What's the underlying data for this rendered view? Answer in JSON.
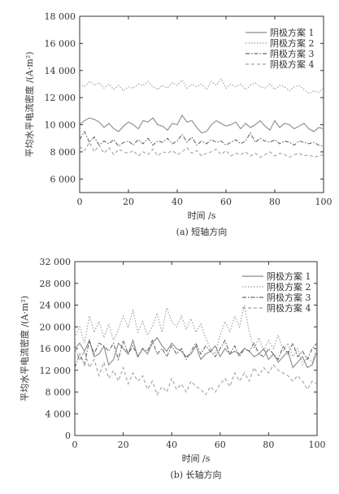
{
  "chart_data": [
    {
      "type": "line",
      "caption": "(a) 短轴方向",
      "xlabel": "时间 /s",
      "ylabel": "平均水平电流密度 /(A·m²)",
      "xlim": [
        0,
        100
      ],
      "ylim": [
        5000,
        18000
      ],
      "xticks": [
        0,
        20,
        40,
        60,
        80,
        100
      ],
      "yticks": [
        "6 000",
        "8 000",
        "10 000",
        "12 000",
        "14 000",
        "16 000",
        "18 000"
      ],
      "ytick_values": [
        6000,
        8000,
        10000,
        12000,
        14000,
        16000,
        18000
      ],
      "legend_position": "top-right",
      "x": [
        0,
        2,
        4,
        6,
        8,
        10,
        12,
        14,
        16,
        18,
        20,
        22,
        24,
        26,
        28,
        30,
        32,
        34,
        36,
        38,
        40,
        42,
        44,
        46,
        48,
        50,
        52,
        54,
        56,
        58,
        60,
        62,
        64,
        66,
        68,
        70,
        72,
        74,
        76,
        78,
        80,
        82,
        84,
        86,
        88,
        90,
        92,
        94,
        96,
        98,
        100
      ],
      "series": [
        {
          "name": "阴极方案 1",
          "color": "#8a8a8a",
          "dash": "",
          "values": [
            10000,
            10300,
            10500,
            10400,
            10200,
            9800,
            10100,
            9700,
            9500,
            9900,
            10200,
            10000,
            9700,
            10300,
            10200,
            10500,
            10000,
            9900,
            9600,
            10100,
            10000,
            10700,
            10200,
            10300,
            9800,
            9400,
            9500,
            10000,
            10300,
            10100,
            9900,
            10000,
            10200,
            9700,
            10100,
            9800,
            10000,
            10300,
            9900,
            9600,
            10300,
            9800,
            10100,
            10000,
            9700,
            9900,
            10100,
            9700,
            9500,
            9800,
            9700
          ]
        },
        {
          "name": "阴极方案 2",
          "color": "#9a9a9a",
          "dash": "1.5,2",
          "values": [
            13000,
            12800,
            13200,
            12900,
            13100,
            12700,
            13000,
            12600,
            12900,
            12500,
            12800,
            12700,
            13000,
            12900,
            13200,
            12800,
            12600,
            12900,
            12700,
            13100,
            12900,
            13300,
            12700,
            13000,
            12800,
            13000,
            12600,
            13200,
            12900,
            13400,
            12700,
            13000,
            12800,
            13000,
            12600,
            12900,
            13100,
            12800,
            12700,
            13000,
            12600,
            12900,
            12800,
            12500,
            12800,
            12900,
            12600,
            12300,
            12500,
            12400,
            12700
          ]
        },
        {
          "name": "阴极方案 3",
          "color": "#666666",
          "dash": "5,2,1.5,2",
          "values": [
            8900,
            9500,
            8700,
            9100,
            8500,
            8800,
            8600,
            8900,
            8400,
            8700,
            8800,
            8500,
            8900,
            8600,
            9000,
            8500,
            8800,
            8700,
            9000,
            8600,
            8800,
            9300,
            8700,
            9100,
            8500,
            8800,
            8600,
            8900,
            8700,
            8800,
            8500,
            8700,
            8900,
            8600,
            8800,
            9400,
            8700,
            9000,
            8800,
            8700,
            8900,
            8600,
            8800,
            8700,
            8500,
            8800,
            8700,
            8600,
            8700,
            8500,
            8400
          ]
        },
        {
          "name": "阴极方案 4",
          "color": "#a0a0a0",
          "dash": "4,3",
          "values": [
            8400,
            8100,
            8700,
            8000,
            8500,
            7900,
            8300,
            7800,
            8200,
            8000,
            7900,
            8100,
            7700,
            8000,
            7800,
            8200,
            7700,
            8000,
            7900,
            8100,
            7800,
            8000,
            8300,
            7900,
            8100,
            7700,
            7900,
            8000,
            8200,
            7800,
            8100,
            7700,
            7900,
            7800,
            8000,
            7700,
            7900,
            7600,
            7800,
            8000,
            7700,
            7900,
            7800,
            7600,
            7800,
            7900,
            7700,
            7800,
            7600,
            7700,
            7800
          ]
        }
      ]
    },
    {
      "type": "line",
      "caption": "(b) 长轴方向",
      "xlabel": "时间 /s",
      "ylabel": "平均水平电流密度 /(A·m²)",
      "xlim": [
        0,
        100
      ],
      "ylim": [
        0,
        32000
      ],
      "xticks": [
        0,
        20,
        40,
        60,
        80,
        100
      ],
      "yticks": [
        "0",
        "4 000",
        "8 000",
        "12 000",
        "16 000",
        "20 000",
        "24 000",
        "28 000",
        "32 000"
      ],
      "ytick_values": [
        0,
        4000,
        8000,
        12000,
        16000,
        20000,
        24000,
        28000,
        32000
      ],
      "legend_position": "top-right",
      "x": [
        0,
        2,
        4,
        6,
        8,
        10,
        12,
        14,
        16,
        18,
        20,
        22,
        24,
        26,
        28,
        30,
        32,
        34,
        36,
        38,
        40,
        42,
        44,
        46,
        48,
        50,
        52,
        54,
        56,
        58,
        60,
        62,
        64,
        66,
        68,
        70,
        72,
        74,
        76,
        78,
        80,
        82,
        84,
        86,
        88,
        90,
        92,
        94,
        96,
        98,
        100
      ],
      "series": [
        {
          "name": "阴极方案 1",
          "color": "#8a8a8a",
          "dash": "",
          "values": [
            16000,
            17000,
            15500,
            17500,
            14500,
            15000,
            16500,
            13000,
            14000,
            17000,
            16000,
            15000,
            17500,
            14500,
            16000,
            15000,
            17000,
            18000,
            16500,
            15500,
            17000,
            16000,
            15500,
            14500,
            15000,
            16500,
            14000,
            15000,
            15500,
            16500,
            14500,
            16000,
            15000,
            15500,
            15000,
            16000,
            15500,
            14500,
            15000,
            16000,
            14000,
            15000,
            13500,
            14500,
            15500,
            12500,
            13500,
            14500,
            12500,
            13000,
            15500
          ]
        },
        {
          "name": "阴极方案 2",
          "color": "#9a9a9a",
          "dash": "1.5,2",
          "values": [
            18000,
            20000,
            17000,
            22000,
            19000,
            21000,
            18000,
            20500,
            17500,
            19500,
            22000,
            20000,
            23000,
            19000,
            21000,
            18500,
            20000,
            22500,
            19000,
            23500,
            21000,
            20000,
            22000,
            19500,
            21500,
            19000,
            20500,
            18000,
            16000,
            15000,
            18500,
            21000,
            19000,
            22000,
            20000,
            24000,
            19000,
            16000,
            18000,
            15500,
            17500,
            16000,
            18500,
            15500,
            17000,
            14500,
            16000,
            13000,
            14500,
            13500,
            16000
          ]
        },
        {
          "name": "阴极方案 3",
          "color": "#666666",
          "dash": "5,2,1.5,2",
          "values": [
            12500,
            15000,
            13000,
            17500,
            15000,
            17000,
            16500,
            15500,
            17000,
            14000,
            17500,
            15000,
            16500,
            14500,
            16000,
            15500,
            17500,
            15000,
            16000,
            14500,
            16500,
            15000,
            16000,
            14000,
            15500,
            17000,
            15000,
            16500,
            15500,
            14500,
            16000,
            17500,
            15000,
            16500,
            14500,
            16000,
            15500,
            17000,
            15000,
            14500,
            16000,
            15000,
            14000,
            16500,
            15000,
            17000,
            14500,
            15500,
            14000,
            16000,
            17000
          ]
        },
        {
          "name": "阴极方案 4",
          "color": "#a0a0a0",
          "dash": "4,3",
          "values": [
            16000,
            14000,
            15500,
            12500,
            14000,
            11000,
            13500,
            10500,
            12000,
            10000,
            12500,
            9500,
            11500,
            10000,
            11000,
            8500,
            10000,
            7500,
            9000,
            8000,
            10500,
            8500,
            9500,
            8000,
            10000,
            9000,
            8500,
            7500,
            9000,
            8000,
            9500,
            10500,
            9000,
            11500,
            10000,
            11500,
            10000,
            12500,
            11000,
            12500,
            11500,
            13000,
            12000,
            11500,
            11000,
            10000,
            11000,
            10000,
            8500,
            10000,
            9500
          ]
        }
      ]
    }
  ]
}
